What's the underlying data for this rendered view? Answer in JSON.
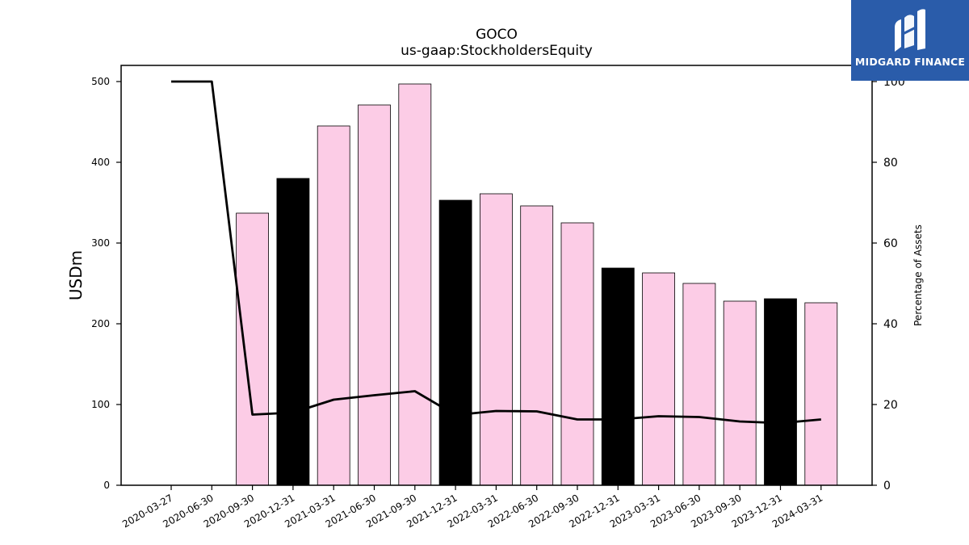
{
  "logo": {
    "text": "MIDGARD FINANCE",
    "bg_color": "#2a5caa"
  },
  "chart_data": {
    "type": "bar",
    "title": "GOCO",
    "subtitle": "us-gaap:StockholdersEquity",
    "ylabel": "USDm",
    "y2label": "Percentage of Assets",
    "ylim": [
      0,
      520
    ],
    "y2lim": [
      0,
      104
    ],
    "yticks": [
      0,
      100,
      200,
      300,
      400,
      500
    ],
    "y2ticks": [
      0,
      20,
      40,
      60,
      80,
      100
    ],
    "categories": [
      "2020-03-27",
      "2020-06-30",
      "2020-09-30",
      "2020-12-31",
      "2021-03-31",
      "2021-06-30",
      "2021-09-30",
      "2021-12-31",
      "2022-03-31",
      "2022-06-30",
      "2022-09-30",
      "2022-12-31",
      "2023-03-31",
      "2023-06-30",
      "2023-09-30",
      "2023-12-31",
      "2024-03-31"
    ],
    "series": [
      {
        "type": "bar",
        "axis": "left",
        "values": [
          null,
          null,
          337,
          380,
          445,
          471,
          497,
          353,
          361,
          346,
          325,
          269,
          263,
          250,
          228,
          231,
          226
        ],
        "colors": [
          "#fccce6",
          "#fccce6",
          "#fccce6",
          "#000000",
          "#fccce6",
          "#fccce6",
          "#fccce6",
          "#000000",
          "#fccce6",
          "#fccce6",
          "#fccce6",
          "#000000",
          "#fccce6",
          "#fccce6",
          "#fccce6",
          "#000000",
          "#fccce6"
        ]
      },
      {
        "type": "line",
        "axis": "right",
        "color": "#000000",
        "values": [
          100,
          100,
          17.5,
          18,
          21.2,
          22.3,
          23.3,
          17.4,
          18.4,
          18.3,
          16.3,
          16.3,
          17.1,
          16.9,
          15.8,
          15.4,
          16.3
        ]
      }
    ],
    "grid": false,
    "legend": "none"
  }
}
